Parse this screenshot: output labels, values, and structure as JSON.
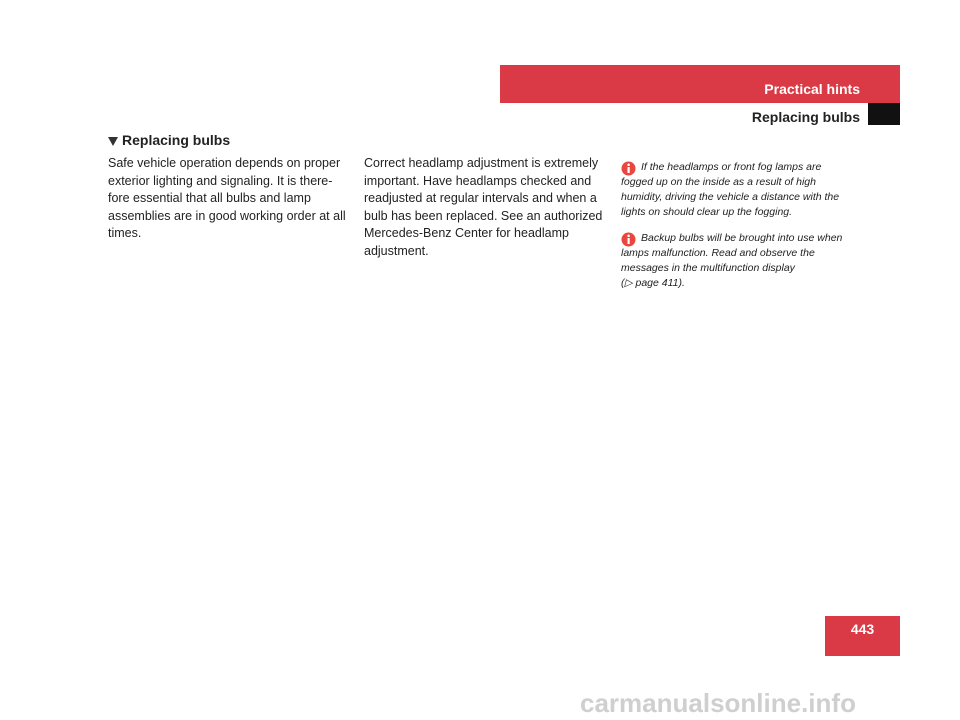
{
  "header": {
    "chapter": "Practical hints",
    "section": "Replacing bulbs"
  },
  "heading": "Replacing bulbs",
  "column1": {
    "lines": [
      "Safe vehicle operation depends on proper",
      "exterior lighting and signaling. It is there-",
      "fore essential that all bulbs and lamp",
      "assemblies are in good working order at all",
      "times."
    ]
  },
  "column2": {
    "lines": [
      "Correct headlamp adjustment is extremely",
      "important. Have headlamps checked and",
      "readjusted at regular intervals and when a",
      "bulb has been replaced. See an authorized",
      "Mercedes-Benz Center for headlamp",
      "adjustment."
    ]
  },
  "notes": [
    {
      "lines": [
        "If the headlamps or front fog lamps are",
        "fogged up on the inside as a result of high",
        "humidity, driving the vehicle a distance with the",
        "lights on should clear up the fogging."
      ]
    },
    {
      "lines": [
        "Backup bulbs will be brought into use when",
        "lamps malfunction. Read and observe the",
        "messages in the multifunction display",
        "(▷ page 411)."
      ]
    }
  ],
  "page_number": "443",
  "watermark": "carmanualsonline.info"
}
